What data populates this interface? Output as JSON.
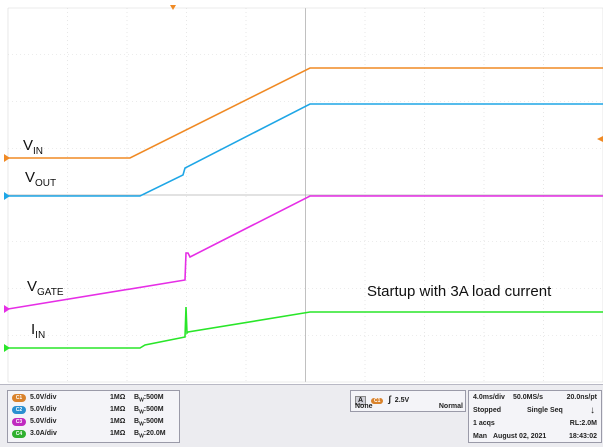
{
  "traces": {
    "vin": {
      "main": "V",
      "sub": "IN",
      "color": "#f08a24"
    },
    "vout": {
      "main": "V",
      "sub": "OUT",
      "color": "#1ea6e6"
    },
    "vgate": {
      "main": "V",
      "sub": "GATE",
      "color": "#e62ee6"
    },
    "iin": {
      "main": "I",
      "sub": "IN",
      "color": "#29e629"
    }
  },
  "annotation": "Startup with 3A load current",
  "channels": [
    {
      "badge": "C1",
      "scale": "5.0V/div",
      "impedance": "1MΩ",
      "bw_prefix": "B",
      "bw_sub": "W",
      "bw_value": ":500M",
      "color": "#d9822b"
    },
    {
      "badge": "C2",
      "scale": "5.0V/div",
      "impedance": "1MΩ",
      "bw_prefix": "B",
      "bw_sub": "W",
      "bw_value": ":500M",
      "color": "#2a8fd0"
    },
    {
      "badge": "C3",
      "scale": "5.0V/div",
      "impedance": "1MΩ",
      "bw_prefix": "B",
      "bw_sub": "W",
      "bw_value": ":500M",
      "color": "#c02ac0"
    },
    {
      "badge": "C4",
      "scale": "3.0A/div",
      "impedance": "1MΩ",
      "bw_prefix": "B",
      "bw_sub": "W",
      "bw_value": ":20.0M",
      "color": "#2fb02f"
    }
  ],
  "trigger": {
    "mode_letter": "A",
    "source_badge": "C1",
    "slope_symbol": "∫",
    "level": "2.5V",
    "coupling": "None",
    "mode": "Normal"
  },
  "timebase": {
    "per_div": "4.0ms/div",
    "sample_rate": "50.0MS/s",
    "resolution": "20.0ns/pt",
    "state": "Stopped",
    "seq_mode": "Single Seq",
    "arrow": "↓",
    "acqs": "1 acqs",
    "record_length": "RL:2.0M",
    "mode": "Man",
    "date": "August 02, 2021",
    "time": "18:43:02"
  }
}
